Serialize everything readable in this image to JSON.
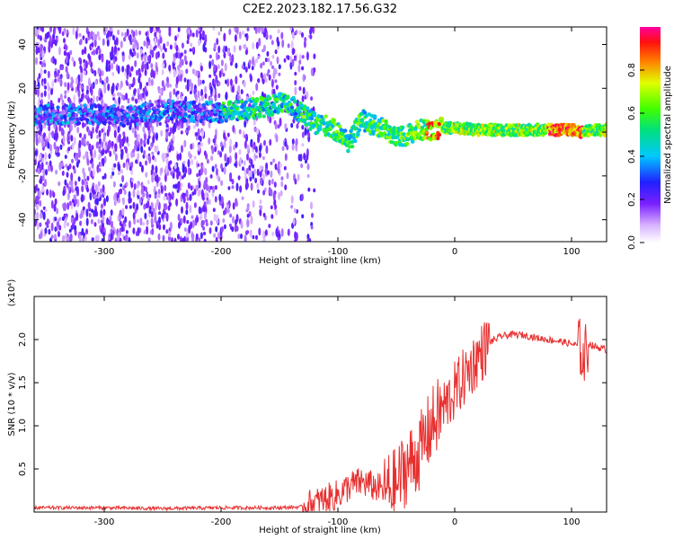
{
  "title": "C2E2.2023.182.17.56.G32",
  "chart_data": [
    {
      "type": "heatmap",
      "xlabel": "Height of straight line (km)",
      "ylabel": "Frequency (Hz)",
      "xlim": [
        -360,
        130
      ],
      "ylim": [
        -50,
        48
      ],
      "xticks": [
        -300,
        -200,
        -100,
        0,
        100
      ],
      "yticks": [
        -40,
        -20,
        0,
        20,
        40
      ],
      "colorbar": {
        "label": "Normalized spectral amplitude",
        "range": [
          0,
          1
        ],
        "ticks": [
          "0.0",
          "0.2",
          "0.4",
          "0.6",
          "0.8"
        ],
        "colormap": "white-purple-blue-cyan-green-yellow-red-magenta"
      },
      "ridge": {
        "x": [
          -350,
          -300,
          -280,
          -250,
          -200,
          -180,
          -160,
          -150,
          -140,
          -130,
          -120,
          -110,
          -100,
          -90,
          -80,
          -70,
          -60,
          -50,
          -40,
          -30,
          -20,
          -10,
          0,
          20,
          50,
          80,
          100,
          110,
          120,
          130
        ],
        "y": [
          8,
          8,
          7,
          10,
          9,
          10,
          12,
          13,
          12,
          8,
          4,
          3,
          0,
          -5,
          6,
          3,
          2,
          -3,
          -1,
          1,
          1,
          2,
          2,
          1,
          1,
          1,
          1,
          0,
          1,
          1
        ]
      }
    },
    {
      "type": "line",
      "xlabel": "Height of straight line (km)",
      "ylabel": "SNR (10 * v/v)",
      "y_multiplier_label": "(x10⁴)",
      "xlim": [
        -360,
        130
      ],
      "ylim": [
        0,
        2.5
      ],
      "xticks": [
        -300,
        -200,
        -100,
        0,
        100
      ],
      "yticks": [
        "0.5",
        "1.0",
        "1.5",
        "2.0"
      ],
      "color": "#e83030",
      "series": [
        {
          "x": [
            -360,
            -300,
            -250,
            -200,
            -150,
            -130,
            -120,
            -110,
            -100,
            -90,
            -80,
            -70,
            -60,
            -50,
            -45,
            -40,
            -35,
            -30,
            -25,
            -20,
            -15,
            -10,
            -5,
            0,
            10,
            20,
            30,
            40,
            50,
            60,
            70,
            80,
            90,
            100,
            105,
            108,
            110,
            112,
            115,
            120,
            125,
            130
          ],
          "y": [
            0.05,
            0.05,
            0.04,
            0.05,
            0.05,
            0.06,
            0.1,
            0.15,
            0.2,
            0.3,
            0.35,
            0.3,
            0.25,
            0.3,
            0.45,
            0.55,
            0.6,
            0.7,
            0.85,
            1.0,
            1.1,
            1.2,
            1.3,
            1.4,
            1.6,
            1.8,
            1.97,
            2.04,
            2.06,
            2.05,
            2.02,
            2.0,
            1.98,
            1.95,
            1.93,
            1.9,
            1.75,
            1.85,
            1.95,
            1.92,
            1.9,
            1.88
          ]
        }
      ]
    }
  ]
}
